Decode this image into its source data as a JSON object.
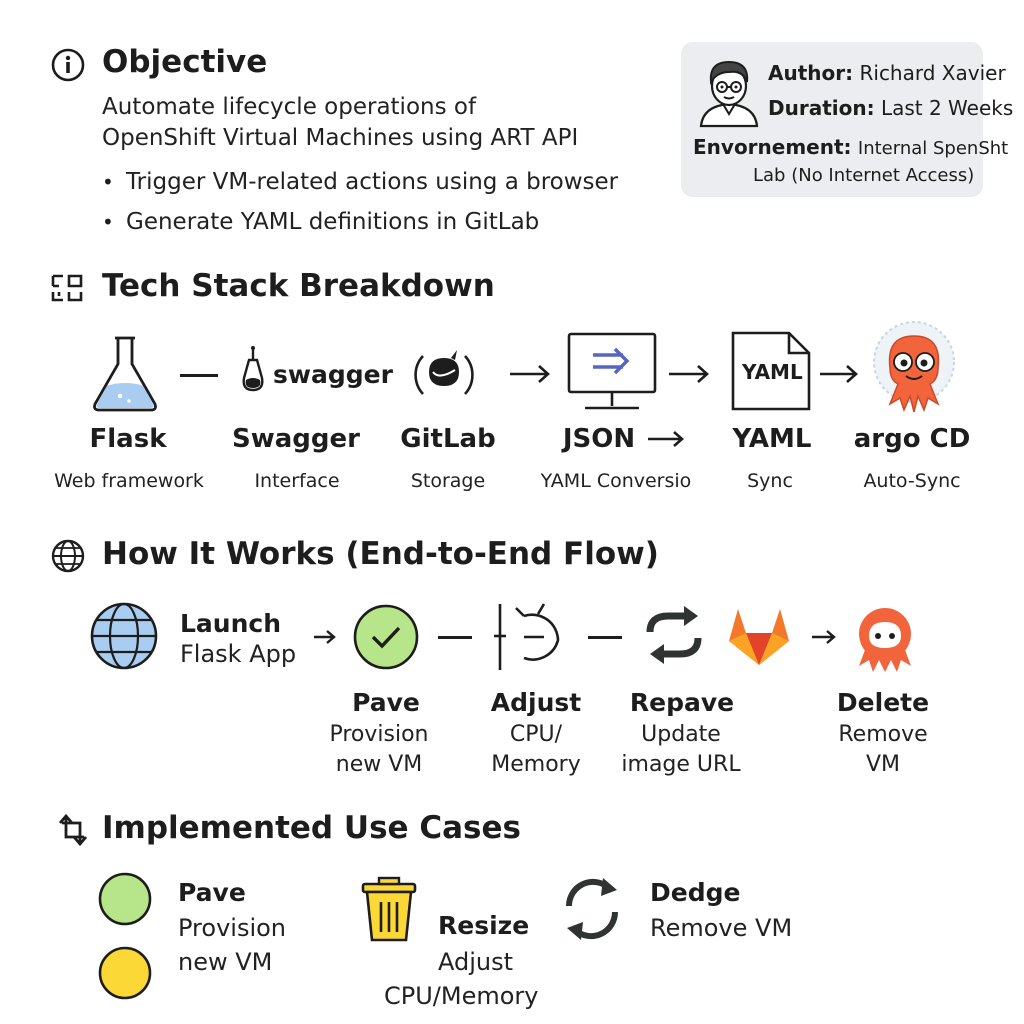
{
  "objective": {
    "title": "Objective",
    "description_line1": "Automate lifecycle operations of",
    "description_line2": "OpenShift Virtual Machines using ART API",
    "bullets": [
      "Trigger VM-related actions using a browser",
      "Generate YAML definitions in GitLab"
    ]
  },
  "info_card": {
    "author_label": "Author:",
    "author_value": "Richard Xavier",
    "duration_label": "Duration:",
    "duration_value": "Last 2 Weeks",
    "environment_label": "Envornement:",
    "environment_value_line1": "Internal SpenSht",
    "environment_value_line2": "Lab (No Internet Access)"
  },
  "tech_stack": {
    "title": "Tech Stack Breakdown",
    "items": [
      {
        "name": "Flask",
        "desc": "Web framework"
      },
      {
        "name": "Swagger",
        "desc": "Interface",
        "logo_text": "swagger"
      },
      {
        "name": "GitLab",
        "desc": "Storage"
      },
      {
        "name": "JSON",
        "desc": "YAML Conversio"
      },
      {
        "name": "YAML",
        "desc": "Sync",
        "doc_text": "YAML"
      },
      {
        "name": "argo CD",
        "desc": "Auto-Sync"
      }
    ]
  },
  "flow": {
    "title": "How It Works (End-to-End Flow)",
    "launch_title": "Launch",
    "launch_desc": "Flask App",
    "steps": [
      {
        "title": "Pave",
        "desc1": "Provision",
        "desc2": "new VM"
      },
      {
        "title": "Adjust",
        "desc1": "CPU/",
        "desc2": "Memory"
      },
      {
        "title": "Repave",
        "desc1": "Update",
        "desc2": "image URL"
      },
      {
        "title": "Delete",
        "desc1": "Remove",
        "desc2": "VM"
      }
    ]
  },
  "use_cases": {
    "title": "Implemented Use Cases",
    "pave_title": "Pave",
    "pave_desc1": "Provision",
    "pave_desc2": "new VM",
    "resize_title": "Resize",
    "resize_desc1": "Adjust",
    "resize_desc2": "CPU/Memory",
    "delete_title": "Dedge",
    "delete_desc": "Remove VM"
  },
  "colors": {
    "green_circle": "#b6e58a",
    "yellow_circle": "#fcd837",
    "argo_orange": "#f2643c",
    "gitlab_orange": "#f4782a",
    "swagger_green": "#85ea2d",
    "globe_blue": "#a8cdf0",
    "accent_blue": "#5565c4"
  }
}
